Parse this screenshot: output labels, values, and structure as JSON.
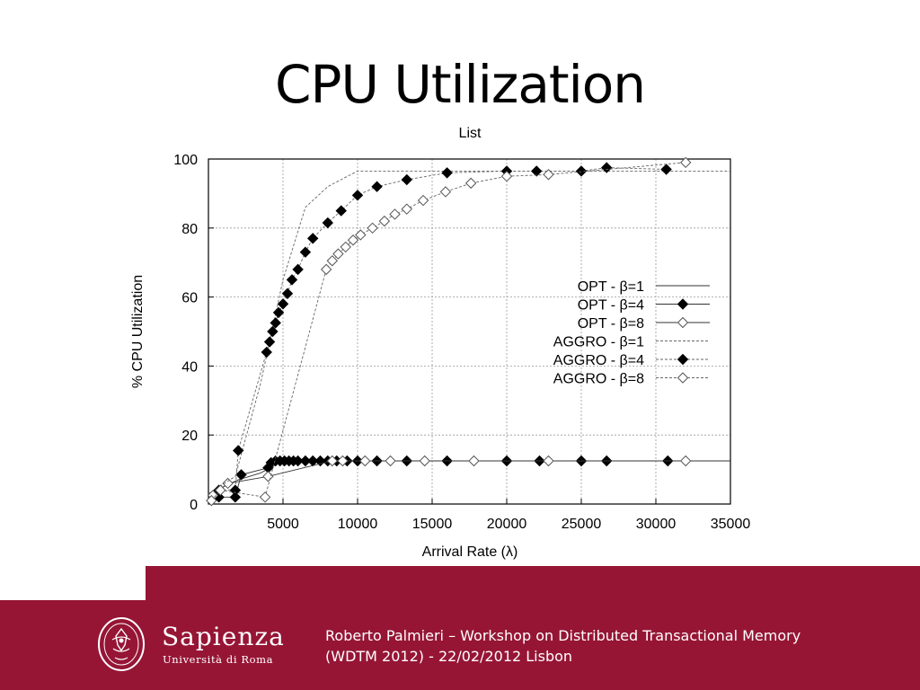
{
  "slide": {
    "title": "CPU Utilization"
  },
  "chart_data": {
    "type": "line",
    "title": "List",
    "xlabel": "Arrival Rate (λ)",
    "ylabel": "% CPU Utilization",
    "xlim": [
      0,
      35000
    ],
    "ylim": [
      0,
      100
    ],
    "xticks": [
      5000,
      10000,
      15000,
      20000,
      25000,
      30000,
      35000
    ],
    "yticks": [
      0,
      20,
      40,
      60,
      80,
      100
    ],
    "grid": true,
    "legend_position": "right",
    "series": [
      {
        "name": "OPT - β=1",
        "line": "solid",
        "marker": "none",
        "x": [
          0,
          2000,
          3500,
          5000,
          35000
        ],
        "y": [
          3,
          7,
          9,
          12.5,
          12.5
        ]
      },
      {
        "name": "OPT - β=4",
        "line": "solid",
        "marker": "filled-diamond",
        "x": [
          700,
          1800,
          2200,
          4000,
          4200,
          4500,
          4800,
          5100,
          5400,
          5700,
          6000,
          6500,
          7000,
          7500,
          8000,
          8600,
          9300,
          10000,
          11300,
          13300,
          16000,
          20000,
          22200,
          25000,
          26700,
          30800
        ],
        "y": [
          2,
          2,
          8.5,
          10.5,
          12,
          12.5,
          12.5,
          12.5,
          12.5,
          12.5,
          12.5,
          12.5,
          12.5,
          12.5,
          12.5,
          12.5,
          12.5,
          12.5,
          12.5,
          12.5,
          12.5,
          12.5,
          12.5,
          12.5,
          12.5,
          12.5
        ]
      },
      {
        "name": "OPT - β=8",
        "line": "solid",
        "marker": "hollow-diamond",
        "x": [
          300,
          1300,
          4000,
          8300,
          9000,
          10500,
          12200,
          14500,
          17800,
          22800,
          32000
        ],
        "y": [
          2.5,
          6,
          8,
          12.5,
          12.5,
          12.5,
          12.5,
          12.5,
          12.5,
          12.5,
          12.5
        ]
      },
      {
        "name": "AGGRO - β=1",
        "line": "dashed",
        "marker": "none",
        "x": [
          0,
          1800,
          3500,
          5000,
          6500,
          8000,
          10000,
          20000,
          35000
        ],
        "y": [
          3,
          8,
          35,
          65,
          86,
          92,
          96.5,
          96.5,
          96.5
        ]
      },
      {
        "name": "AGGRO - β=4",
        "line": "dashed",
        "marker": "filled-diamond",
        "x": [
          700,
          1800,
          2000,
          3900,
          4100,
          4300,
          4500,
          4700,
          5000,
          5300,
          5600,
          6000,
          6500,
          7000,
          8000,
          8900,
          10000,
          11300,
          13300,
          16000,
          20000,
          22000,
          25000,
          26700,
          30700
        ],
        "y": [
          4,
          4,
          15.5,
          44,
          47,
          50,
          52.5,
          55.5,
          58,
          61,
          65,
          68,
          73,
          77,
          81.5,
          85,
          89.5,
          92,
          94,
          96,
          96.5,
          96.5,
          96.5,
          97.5,
          97
        ]
      },
      {
        "name": "AGGRO - β=8",
        "line": "dashed",
        "marker": "hollow-diamond",
        "x": [
          200,
          800,
          3800,
          7900,
          8300,
          8700,
          9200,
          9700,
          10200,
          11000,
          11800,
          12500,
          13300,
          14400,
          15900,
          17600,
          20000,
          22800,
          32000
        ],
        "y": [
          1,
          4,
          2,
          68,
          70.5,
          72.5,
          74.5,
          76.5,
          78,
          80,
          82,
          84,
          85.5,
          88,
          90.5,
          93,
          95,
          95.5,
          99
        ]
      }
    ]
  },
  "footer": {
    "logo_name": "Sapienza",
    "logo_sub": "Università di Roma",
    "line1": "Roberto Palmieri – Workshop on Distributed Transactional Memory",
    "line2": "(WDTM 2012) - 22/02/2012 Lisbon"
  },
  "colors": {
    "brand": "#961535",
    "footer_text": "#ffffff",
    "grid": "#aaaaaa"
  }
}
